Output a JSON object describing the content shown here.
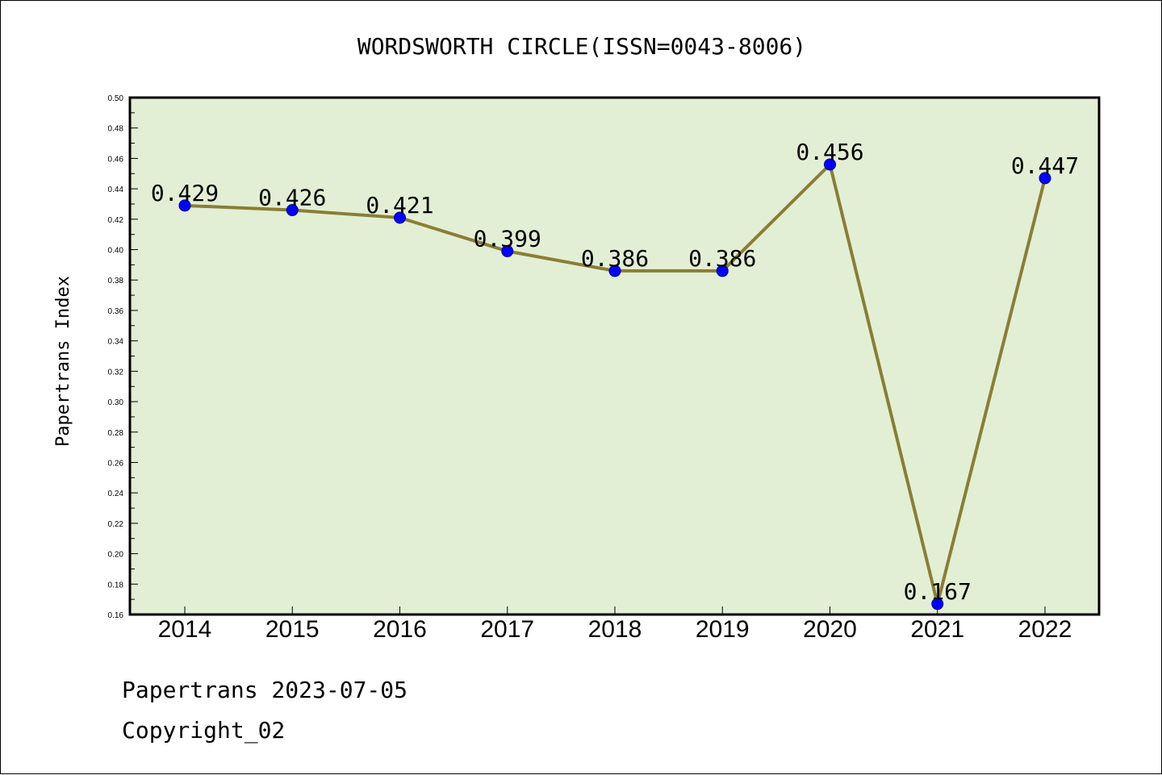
{
  "colors": {
    "plot_background": "#e2efd4",
    "line": "#8b7d35",
    "marker": "#0000ff",
    "axis": "#000000"
  },
  "chart_data": {
    "type": "line",
    "title": "WORDSWORTH CIRCLE(ISSN=0043-8006)",
    "xlabel": "",
    "ylabel": "Papertrans Index",
    "ylim": [
      0.16,
      0.5
    ],
    "ytick_step": 0.02,
    "ytick_labels": [
      "0.16",
      "0.18",
      "0.20",
      "0.22",
      "0.24",
      "0.26",
      "0.28",
      "0.30",
      "0.32",
      "0.34",
      "0.36",
      "0.38",
      "0.40",
      "0.42",
      "0.44",
      "0.46",
      "0.48",
      "0.50"
    ],
    "categories": [
      "2014",
      "2015",
      "2016",
      "2017",
      "2018",
      "2019",
      "2020",
      "2021",
      "2022"
    ],
    "values": [
      0.429,
      0.426,
      0.421,
      0.399,
      0.386,
      0.386,
      0.456,
      0.167,
      0.447
    ],
    "data_labels": [
      "0.429",
      "0.426",
      "0.421",
      "0.399",
      "0.386",
      "0.386",
      "0.456",
      "0.167",
      "0.447"
    ],
    "grid": false,
    "legend": "none"
  },
  "footer": {
    "line1": "Papertrans 2023-07-05",
    "line2": "Copyright_02"
  }
}
